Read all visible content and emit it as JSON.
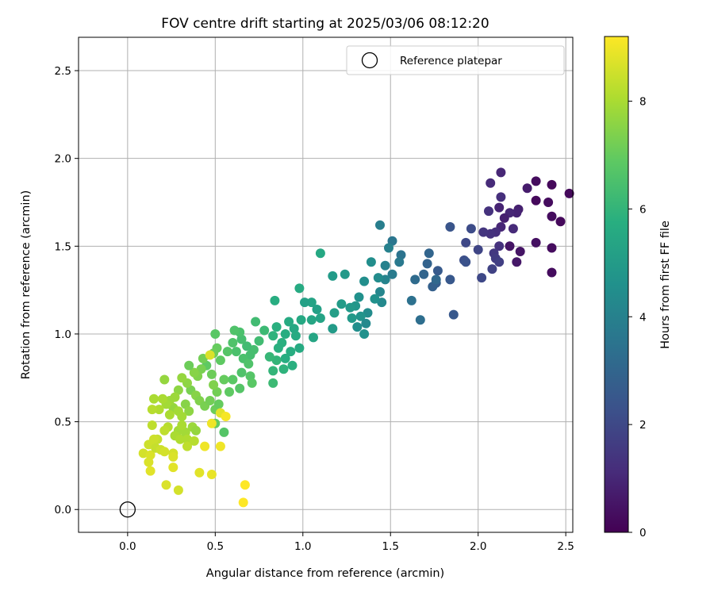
{
  "chart_data": {
    "type": "scatter",
    "title": "FOV centre drift starting at 2025/03/06 08:12:20",
    "xlabel": "Angular distance from reference (arcmin)",
    "ylabel": "Rotation from reference (arcmin)",
    "xlim": [
      -0.28,
      2.54
    ],
    "ylim": [
      -0.13,
      2.69
    ],
    "xticks": [
      0.0,
      0.5,
      1.0,
      1.5,
      2.0,
      2.5
    ],
    "xtick_labels": [
      "0.0",
      "0.5",
      "1.0",
      "1.5",
      "2.0",
      "2.5"
    ],
    "yticks": [
      0.0,
      0.5,
      1.0,
      1.5,
      2.0,
      2.5
    ],
    "ytick_labels": [
      "0.0",
      "0.5",
      "1.0",
      "1.5",
      "2.0",
      "2.5"
    ],
    "grid": true,
    "legend": {
      "placement": "top-right",
      "entries": [
        "Reference platepar"
      ]
    },
    "reference_point": {
      "x": 0.0,
      "y": 0.0,
      "marker": "open-circle"
    },
    "colorbar": {
      "label": "Hours from first FF file",
      "colormap": "viridis",
      "range": [
        0,
        9.2
      ],
      "ticks": [
        0,
        2,
        4,
        6,
        8
      ],
      "tick_labels": [
        "0",
        "2",
        "4",
        "6",
        "8"
      ]
    },
    "series": [
      {
        "color_key": "hours",
        "points": [
          [
            2.42,
            1.85,
            0.2
          ],
          [
            2.33,
            1.87,
            0.3
          ],
          [
            2.52,
            1.8,
            0.2
          ],
          [
            2.47,
            1.64,
            0.2
          ],
          [
            2.42,
            1.67,
            0.3
          ],
          [
            2.4,
            1.75,
            0.3
          ],
          [
            2.33,
            1.76,
            0.2
          ],
          [
            2.42,
            1.49,
            0.3
          ],
          [
            2.42,
            1.35,
            0.3
          ],
          [
            2.33,
            1.52,
            0.4
          ],
          [
            2.24,
            1.47,
            0.5
          ],
          [
            2.22,
            1.41,
            0.6
          ],
          [
            2.18,
            1.5,
            0.5
          ],
          [
            2.28,
            1.83,
            0.7
          ],
          [
            2.23,
            1.71,
            0.8
          ],
          [
            2.22,
            1.69,
            0.9
          ],
          [
            2.18,
            1.69,
            1.0
          ],
          [
            2.15,
            1.66,
            0.8
          ],
          [
            2.13,
            1.92,
            1.0
          ],
          [
            2.07,
            1.86,
            1.1
          ],
          [
            2.13,
            1.78,
            1.2
          ],
          [
            2.12,
            1.72,
            0.9
          ],
          [
            2.06,
            1.7,
            1.3
          ],
          [
            2.2,
            1.6,
            1.1
          ],
          [
            2.13,
            1.61,
            1.0
          ],
          [
            2.1,
            1.58,
            1.2
          ],
          [
            2.07,
            1.57,
            1.3
          ],
          [
            2.03,
            1.58,
            1.4
          ],
          [
            2.12,
            1.5,
            1.3
          ],
          [
            2.09,
            1.46,
            1.5
          ],
          [
            2.1,
            1.43,
            1.6
          ],
          [
            2.12,
            1.41,
            1.7
          ],
          [
            2.08,
            1.37,
            1.8
          ],
          [
            2.02,
            1.32,
            2.0
          ],
          [
            2.0,
            1.48,
            1.9
          ],
          [
            1.96,
            1.6,
            2.1
          ],
          [
            1.93,
            1.52,
            2.0
          ],
          [
            1.92,
            1.42,
            2.2
          ],
          [
            1.93,
            1.41,
            2.3
          ],
          [
            1.84,
            1.61,
            2.4
          ],
          [
            1.84,
            1.31,
            2.5
          ],
          [
            1.77,
            1.36,
            2.6
          ],
          [
            1.76,
            1.29,
            2.7
          ],
          [
            1.74,
            1.27,
            2.8
          ],
          [
            1.71,
            1.4,
            2.9
          ],
          [
            1.72,
            1.46,
            3.0
          ],
          [
            1.69,
            1.34,
            3.0
          ],
          [
            1.76,
            1.31,
            3.1
          ],
          [
            1.64,
            1.31,
            3.2
          ],
          [
            1.67,
            1.08,
            3.3
          ],
          [
            1.62,
            1.19,
            3.4
          ],
          [
            1.86,
            1.11,
            2.5
          ],
          [
            1.51,
            1.53,
            3.6
          ],
          [
            1.56,
            1.45,
            3.5
          ],
          [
            1.55,
            1.41,
            3.7
          ],
          [
            1.51,
            1.34,
            3.8
          ],
          [
            1.44,
            1.62,
            3.9
          ],
          [
            1.49,
            1.49,
            4.0
          ],
          [
            1.47,
            1.39,
            4.0
          ],
          [
            1.47,
            1.31,
            4.1
          ],
          [
            1.44,
            1.24,
            4.2
          ],
          [
            1.45,
            1.18,
            4.3
          ],
          [
            1.43,
            1.32,
            4.4
          ],
          [
            1.39,
            1.41,
            4.5
          ],
          [
            1.35,
            1.3,
            4.5
          ],
          [
            1.41,
            1.2,
            4.6
          ],
          [
            1.37,
            1.12,
            4.4
          ],
          [
            1.32,
            1.21,
            4.6
          ],
          [
            1.33,
            1.1,
            4.7
          ],
          [
            1.3,
            1.16,
            4.8
          ],
          [
            1.28,
            1.09,
            4.9
          ],
          [
            1.22,
            1.17,
            5.0
          ],
          [
            1.27,
            1.15,
            4.9
          ],
          [
            1.36,
            1.06,
            4.3
          ],
          [
            1.35,
            1.0,
            4.6
          ],
          [
            1.31,
            1.04,
            4.5
          ],
          [
            1.24,
            1.34,
            4.9
          ],
          [
            1.17,
            1.33,
            5.0
          ],
          [
            1.18,
            1.12,
            5.1
          ],
          [
            1.17,
            1.03,
            5.0
          ],
          [
            1.1,
            1.46,
            5.5
          ],
          [
            1.05,
            1.18,
            5.3
          ],
          [
            1.01,
            1.18,
            5.2
          ],
          [
            1.08,
            1.14,
            5.2
          ],
          [
            1.1,
            1.09,
            5.3
          ],
          [
            1.05,
            1.08,
            5.4
          ],
          [
            1.06,
            0.98,
            5.4
          ],
          [
            0.98,
            1.26,
            5.6
          ],
          [
            0.99,
            1.08,
            5.5
          ],
          [
            0.95,
            1.03,
            5.5
          ],
          [
            0.96,
            0.99,
            5.6
          ],
          [
            0.92,
            1.07,
            5.6
          ],
          [
            0.9,
            1.0,
            5.7
          ],
          [
            0.98,
            0.92,
            5.6
          ],
          [
            0.93,
            0.9,
            5.7
          ],
          [
            0.88,
            0.95,
            5.8
          ],
          [
            0.84,
            1.19,
            5.7
          ],
          [
            0.85,
            1.04,
            5.8
          ],
          [
            0.83,
            0.99,
            5.9
          ],
          [
            0.86,
            0.92,
            5.8
          ],
          [
            0.9,
            0.86,
            5.7
          ],
          [
            0.94,
            0.82,
            5.8
          ],
          [
            0.89,
            0.8,
            5.9
          ],
          [
            0.85,
            0.85,
            6.0
          ],
          [
            0.83,
            0.79,
            6.0
          ],
          [
            0.81,
            0.87,
            6.1
          ],
          [
            0.83,
            0.72,
            6.2
          ],
          [
            0.78,
            1.02,
            6.2
          ],
          [
            0.73,
            1.07,
            6.3
          ],
          [
            0.75,
            0.96,
            6.3
          ],
          [
            0.72,
            0.91,
            6.4
          ],
          [
            0.7,
            0.88,
            6.4
          ],
          [
            0.68,
            0.93,
            6.3
          ],
          [
            0.65,
            0.97,
            6.4
          ],
          [
            0.64,
            1.01,
            6.5
          ],
          [
            0.61,
            1.02,
            6.6
          ],
          [
            0.62,
            0.9,
            6.5
          ],
          [
            0.66,
            0.86,
            6.5
          ],
          [
            0.69,
            0.83,
            6.6
          ],
          [
            0.65,
            0.78,
            6.6
          ],
          [
            0.7,
            0.76,
            6.7
          ],
          [
            0.71,
            0.72,
            6.8
          ],
          [
            0.64,
            0.69,
            6.7
          ],
          [
            0.6,
            0.74,
            6.8
          ],
          [
            0.6,
            0.95,
            6.6
          ],
          [
            0.57,
            0.9,
            6.7
          ],
          [
            0.53,
            0.85,
            6.9
          ],
          [
            0.5,
            1.0,
            6.8
          ],
          [
            0.51,
            0.92,
            7.0
          ],
          [
            0.49,
            0.89,
            7.1
          ],
          [
            0.45,
            0.82,
            6.9
          ],
          [
            0.43,
            0.86,
            7.2
          ],
          [
            0.48,
            0.77,
            7.1
          ],
          [
            0.55,
            0.74,
            7.0
          ],
          [
            0.58,
            0.67,
            6.9
          ],
          [
            0.51,
            0.67,
            7.2
          ],
          [
            0.49,
            0.71,
            7.4
          ],
          [
            0.42,
            0.8,
            7.3
          ],
          [
            0.4,
            0.76,
            7.4
          ],
          [
            0.38,
            0.78,
            7.5
          ],
          [
            0.35,
            0.82,
            7.1
          ],
          [
            0.36,
            0.68,
            7.3
          ],
          [
            0.39,
            0.65,
            7.5
          ],
          [
            0.41,
            0.62,
            7.4
          ],
          [
            0.44,
            0.59,
            7.3
          ],
          [
            0.47,
            0.62,
            7.2
          ],
          [
            0.5,
            0.57,
            7.1
          ],
          [
            0.52,
            0.6,
            7.0
          ],
          [
            0.5,
            0.49,
            7.0
          ],
          [
            0.55,
            0.44,
            6.7
          ],
          [
            0.34,
            0.72,
            7.6
          ],
          [
            0.31,
            0.75,
            7.7
          ],
          [
            0.29,
            0.68,
            7.6
          ],
          [
            0.27,
            0.64,
            7.8
          ],
          [
            0.26,
            0.58,
            7.7
          ],
          [
            0.29,
            0.56,
            7.9
          ],
          [
            0.33,
            0.6,
            7.5
          ],
          [
            0.35,
            0.56,
            7.6
          ],
          [
            0.31,
            0.53,
            7.9
          ],
          [
            0.24,
            0.62,
            7.8
          ],
          [
            0.22,
            0.6,
            7.9
          ],
          [
            0.2,
            0.63,
            8.0
          ],
          [
            0.21,
            0.74,
            7.7
          ],
          [
            0.15,
            0.63,
            8.0
          ],
          [
            0.18,
            0.57,
            8.1
          ],
          [
            0.24,
            0.54,
            8.0
          ],
          [
            0.14,
            0.57,
            8.2
          ],
          [
            0.29,
            0.45,
            7.9
          ],
          [
            0.27,
            0.42,
            8.0
          ],
          [
            0.3,
            0.4,
            8.1
          ],
          [
            0.33,
            0.44,
            7.9
          ],
          [
            0.34,
            0.4,
            8.1
          ],
          [
            0.31,
            0.48,
            8.0
          ],
          [
            0.37,
            0.47,
            7.8
          ],
          [
            0.39,
            0.45,
            7.7
          ],
          [
            0.34,
            0.36,
            8.3
          ],
          [
            0.38,
            0.39,
            8.2
          ],
          [
            0.23,
            0.47,
            8.2
          ],
          [
            0.21,
            0.45,
            8.3
          ],
          [
            0.17,
            0.4,
            8.4
          ],
          [
            0.14,
            0.48,
            8.3
          ],
          [
            0.15,
            0.4,
            8.5
          ],
          [
            0.12,
            0.37,
            8.5
          ],
          [
            0.09,
            0.32,
            8.6
          ],
          [
            0.13,
            0.31,
            8.7
          ],
          [
            0.16,
            0.35,
            8.4
          ],
          [
            0.19,
            0.34,
            8.5
          ],
          [
            0.21,
            0.33,
            8.6
          ],
          [
            0.12,
            0.27,
            8.7
          ],
          [
            0.13,
            0.22,
            8.8
          ],
          [
            0.26,
            0.32,
            8.6
          ],
          [
            0.26,
            0.3,
            8.7
          ],
          [
            0.26,
            0.24,
            8.8
          ],
          [
            0.29,
            0.11,
            8.6
          ],
          [
            0.22,
            0.14,
            8.7
          ],
          [
            0.41,
            0.21,
            8.8
          ],
          [
            0.48,
            0.2,
            8.9
          ],
          [
            0.44,
            0.36,
            9.0
          ],
          [
            0.48,
            0.49,
            9.0
          ],
          [
            0.53,
            0.55,
            8.8
          ],
          [
            0.53,
            0.36,
            9.0
          ],
          [
            0.56,
            0.53,
            9.1
          ],
          [
            0.66,
            0.04,
            9.2
          ],
          [
            0.67,
            0.14,
            9.2
          ],
          [
            0.47,
            0.88,
            8.7
          ]
        ]
      }
    ]
  }
}
